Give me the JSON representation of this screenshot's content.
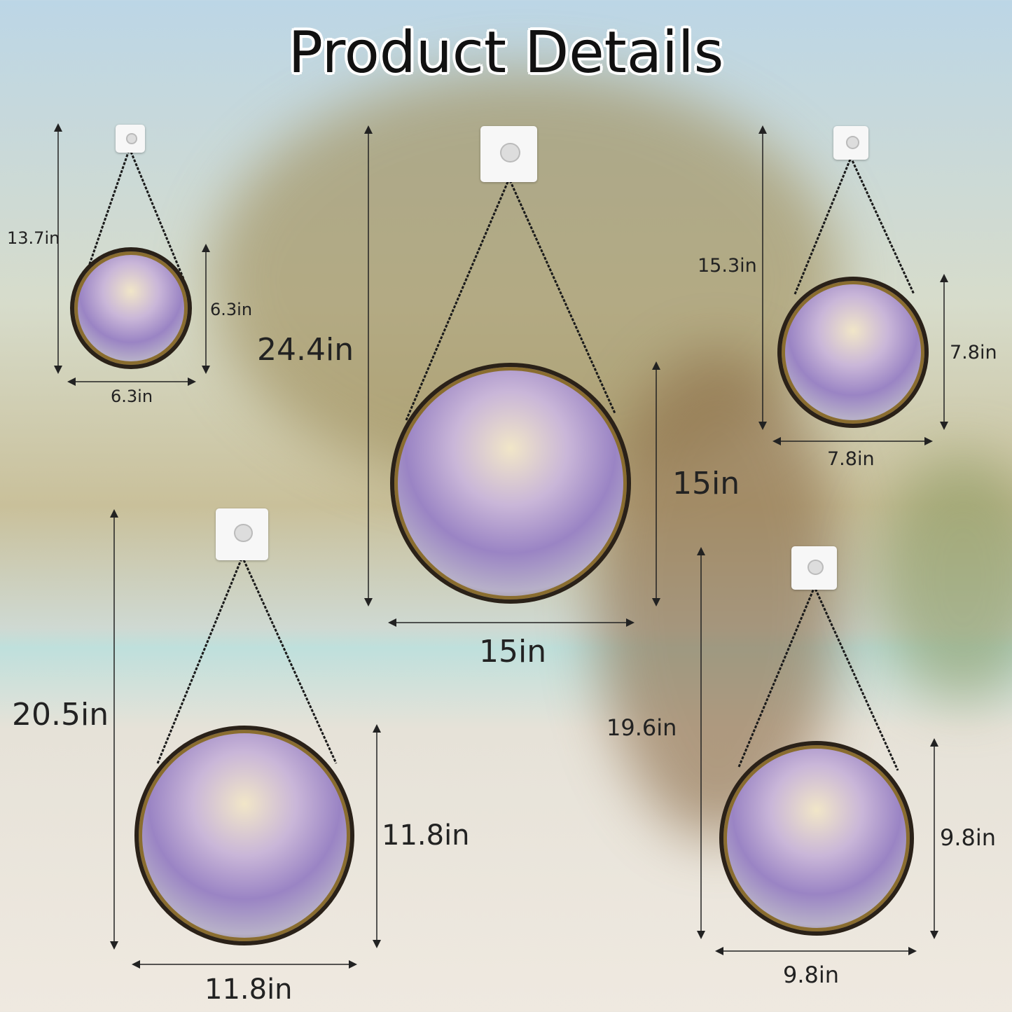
{
  "title": "Product Details",
  "ornaments": [
    {
      "total": "13.7in",
      "height": "6.3in",
      "width": "6.3in"
    },
    {
      "total": "24.4in",
      "height": "15in",
      "width": "15in"
    },
    {
      "total": "15.3in",
      "height": "7.8in",
      "width": "7.8in"
    },
    {
      "total": "20.5in",
      "height": "11.8in",
      "width": "11.8in"
    },
    {
      "total": "19.6in",
      "height": "9.8in",
      "width": "9.8in"
    }
  ],
  "colors": {
    "frame": "#2a2118",
    "flowers": "#9a84c4",
    "leaves": "#c9a23a"
  }
}
